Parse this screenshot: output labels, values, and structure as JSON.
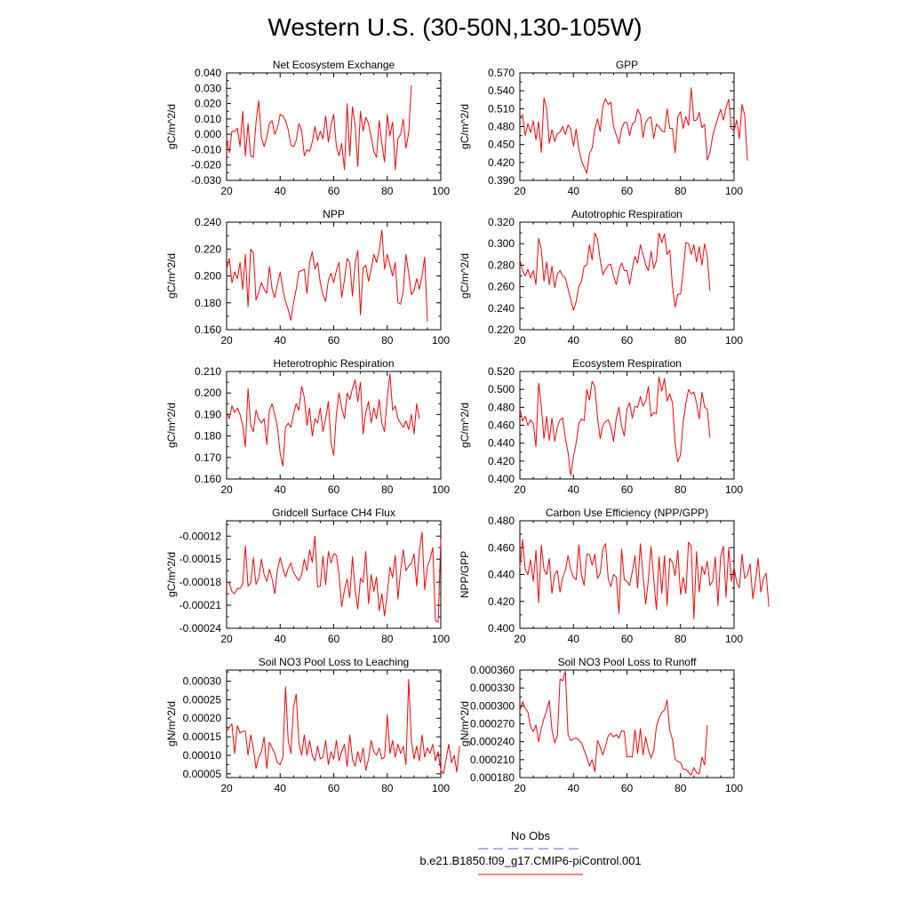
{
  "figure": {
    "title": "Western U.S. (30-50N,130-105W)",
    "legend": {
      "items": [
        {
          "label": "No Obs",
          "color": "#5555ff",
          "dashed": true
        },
        {
          "label": "b.e21.B1850.f09_g17.CMIP6-piControl.001",
          "color": "#ff0000",
          "dashed": false
        }
      ]
    }
  },
  "chart_data": [
    {
      "type": "line",
      "title": "Net Ecosystem Exchange",
      "ylabel": "gC/m^2/d",
      "xlim": [
        20,
        100
      ],
      "ylim": [
        -0.03,
        0.04
      ],
      "xticks": [
        "20",
        "40",
        "60",
        "80",
        "100"
      ],
      "yticks": [
        "-0.030",
        "-0.020",
        "-0.010",
        "0.000",
        "0.010",
        "0.020",
        "0.030",
        "0.040"
      ],
      "color": "#ff0000",
      "x0": 20,
      "values": [
        -0.003,
        -0.012,
        0.002,
        0.002,
        0.004,
        -0.008,
        0.015,
        -0.014,
        0.007,
        -0.014,
        -0.015,
        0.008,
        0.022,
        -0.002,
        -0.008,
        -0.002,
        0.007,
        0.009,
        0.0,
        0.004,
        0.013,
        0.012,
        0.009,
        0.003,
        -0.007,
        -0.008,
        -0.004,
        0.007,
        0.003,
        -0.014,
        -0.01,
        -0.011,
        -0.005,
        0.005,
        -0.004,
        0.002,
        -0.003,
        0.012,
        -0.005,
        0.006,
        0.013,
        -0.008,
        -0.014,
        -0.006,
        -0.023,
        0.02,
        -0.014,
        0.018,
        0.006,
        -0.021,
        0.015,
        0.002,
        0.011,
        0.007,
        -0.002,
        -0.011,
        -0.015,
        0.009,
        -0.006,
        -0.018,
        0.013,
        -0.001,
        0.008,
        -0.023,
        -0.003,
        0.0,
        0.01,
        -0.009,
        0.001,
        0.032
      ]
    },
    {
      "type": "line",
      "title": "GPP",
      "ylabel": "gC/m^2/d",
      "xlim": [
        20,
        100
      ],
      "ylim": [
        0.39,
        0.57
      ],
      "xticks": [
        "20",
        "40",
        "60",
        "80",
        "100"
      ],
      "yticks": [
        "0.390",
        "0.420",
        "0.450",
        "0.480",
        "0.510",
        "0.540",
        "0.570"
      ],
      "color": "#ff0000",
      "x0": 20,
      "values": [
        0.495,
        0.5,
        0.465,
        0.485,
        0.47,
        0.49,
        0.458,
        0.488,
        0.437,
        0.528,
        0.511,
        0.452,
        0.475,
        0.455,
        0.468,
        0.471,
        0.48,
        0.467,
        0.483,
        0.476,
        0.447,
        0.476,
        0.443,
        0.423,
        0.412,
        0.402,
        0.435,
        0.444,
        0.476,
        0.493,
        0.472,
        0.514,
        0.527,
        0.517,
        0.521,
        0.48,
        0.466,
        0.451,
        0.477,
        0.487,
        0.487,
        0.465,
        0.484,
        0.488,
        0.509,
        0.5,
        0.462,
        0.487,
        0.494,
        0.496,
        0.46,
        0.484,
        0.48,
        0.473,
        0.471,
        0.51,
        0.477,
        0.477,
        0.436,
        0.496,
        0.505,
        0.477,
        0.497,
        0.482,
        0.545,
        0.49,
        0.491,
        0.504,
        0.478,
        0.484,
        0.424,
        0.436,
        0.465,
        0.48,
        0.495,
        0.509,
        0.491,
        0.512,
        0.526,
        0.477,
        0.473,
        0.491,
        0.46,
        0.517,
        0.499,
        0.423
      ]
    },
    {
      "type": "line",
      "title": "NPP",
      "ylabel": "gC/m^2/d",
      "xlim": [
        20,
        100
      ],
      "ylim": [
        0.16,
        0.24
      ],
      "xticks": [
        "20",
        "40",
        "60",
        "80",
        "100"
      ],
      "yticks": [
        "0.160",
        "0.180",
        "0.200",
        "0.220",
        "0.240"
      ],
      "color": "#ff0000",
      "x0": 20,
      "values": [
        0.205,
        0.213,
        0.195,
        0.203,
        0.198,
        0.21,
        0.19,
        0.216,
        0.177,
        0.22,
        0.217,
        0.182,
        0.188,
        0.195,
        0.19,
        0.187,
        0.207,
        0.19,
        0.184,
        0.194,
        0.203,
        0.19,
        0.181,
        0.175,
        0.167,
        0.18,
        0.19,
        0.203,
        0.204,
        0.205,
        0.187,
        0.21,
        0.218,
        0.205,
        0.21,
        0.195,
        0.186,
        0.181,
        0.197,
        0.202,
        0.195,
        0.204,
        0.21,
        0.184,
        0.197,
        0.213,
        0.21,
        0.185,
        0.209,
        0.219,
        0.171,
        0.206,
        0.208,
        0.196,
        0.205,
        0.216,
        0.21,
        0.219,
        0.234,
        0.205,
        0.216,
        0.208,
        0.2,
        0.21,
        0.18,
        0.179,
        0.189,
        0.216,
        0.202,
        0.186,
        0.189,
        0.198,
        0.19,
        0.2,
        0.214,
        0.166
      ]
    },
    {
      "type": "line",
      "title": "Autotrophic Respiration",
      "ylabel": "gC/m^2/d",
      "xlim": [
        20,
        100
      ],
      "ylim": [
        0.22,
        0.32
      ],
      "xticks": [
        "20",
        "40",
        "60",
        "80",
        "100"
      ],
      "yticks": [
        "0.220",
        "0.240",
        "0.260",
        "0.280",
        "0.300",
        "0.320"
      ],
      "color": "#ff0000",
      "x0": 20,
      "values": [
        0.285,
        0.275,
        0.27,
        0.276,
        0.268,
        0.275,
        0.262,
        0.305,
        0.295,
        0.265,
        0.283,
        0.262,
        0.279,
        0.259,
        0.272,
        0.275,
        0.27,
        0.268,
        0.258,
        0.248,
        0.238,
        0.246,
        0.26,
        0.265,
        0.279,
        0.28,
        0.299,
        0.285,
        0.31,
        0.304,
        0.285,
        0.271,
        0.276,
        0.28,
        0.281,
        0.27,
        0.262,
        0.275,
        0.282,
        0.275,
        0.275,
        0.262,
        0.277,
        0.288,
        0.282,
        0.299,
        0.29,
        0.28,
        0.275,
        0.293,
        0.277,
        0.284,
        0.31,
        0.301,
        0.309,
        0.29,
        0.294,
        0.26,
        0.241,
        0.253,
        0.253,
        0.275,
        0.301,
        0.3,
        0.29,
        0.299,
        0.283,
        0.297,
        0.28,
        0.3,
        0.288,
        0.256
      ]
    },
    {
      "type": "line",
      "title": "Heterotrophic Respiration",
      "ylabel": "gC/m^2/d",
      "xlim": [
        20,
        100
      ],
      "ylim": [
        0.16,
        0.21
      ],
      "xticks": [
        "20",
        "40",
        "60",
        "80",
        "100"
      ],
      "yticks": [
        "0.160",
        "0.170",
        "0.180",
        "0.190",
        "0.200",
        "0.210"
      ],
      "color": "#ff0000",
      "x0": 20,
      "values": [
        0.191,
        0.188,
        0.194,
        0.191,
        0.193,
        0.19,
        0.185,
        0.175,
        0.202,
        0.185,
        0.182,
        0.192,
        0.188,
        0.186,
        0.188,
        0.176,
        0.192,
        0.195,
        0.19,
        0.184,
        0.172,
        0.166,
        0.184,
        0.186,
        0.184,
        0.19,
        0.195,
        0.192,
        0.203,
        0.198,
        0.185,
        0.193,
        0.18,
        0.188,
        0.186,
        0.193,
        0.182,
        0.188,
        0.196,
        0.177,
        0.171,
        0.19,
        0.2,
        0.193,
        0.188,
        0.2,
        0.197,
        0.202,
        0.206,
        0.196,
        0.205,
        0.181,
        0.191,
        0.196,
        0.186,
        0.193,
        0.188,
        0.197,
        0.186,
        0.182,
        0.198,
        0.209,
        0.192,
        0.194,
        0.188,
        0.186,
        0.184,
        0.187,
        0.183,
        0.19,
        0.181,
        0.195,
        0.188
      ]
    },
    {
      "type": "line",
      "title": "Ecosystem Respiration",
      "ylabel": "gC/m^2/d",
      "xlim": [
        20,
        100
      ],
      "ylim": [
        0.4,
        0.52
      ],
      "xticks": [
        "20",
        "40",
        "60",
        "80",
        "100"
      ],
      "yticks": [
        "0.400",
        "0.420",
        "0.440",
        "0.460",
        "0.480",
        "0.500",
        "0.520"
      ],
      "color": "#ff0000",
      "x0": 20,
      "values": [
        0.478,
        0.465,
        0.47,
        0.46,
        0.466,
        0.462,
        0.436,
        0.507,
        0.481,
        0.445,
        0.47,
        0.443,
        0.468,
        0.442,
        0.458,
        0.466,
        0.468,
        0.445,
        0.43,
        0.404,
        0.425,
        0.44,
        0.462,
        0.467,
        0.465,
        0.5,
        0.488,
        0.509,
        0.503,
        0.468,
        0.445,
        0.46,
        0.464,
        0.466,
        0.458,
        0.442,
        0.468,
        0.48,
        0.459,
        0.448,
        0.478,
        0.485,
        0.468,
        0.481,
        0.48,
        0.492,
        0.481,
        0.487,
        0.503,
        0.47,
        0.474,
        0.473,
        0.514,
        0.498,
        0.512,
        0.487,
        0.495,
        0.485,
        0.44,
        0.419,
        0.427,
        0.464,
        0.484,
        0.5,
        0.495,
        0.497,
        0.485,
        0.467,
        0.497,
        0.48,
        0.478,
        0.446
      ]
    },
    {
      "type": "line",
      "title": "Gridcell Surface CH4 Flux",
      "ylabel": "gC/m^2/d",
      "xlim": [
        20,
        100
      ],
      "ylim": [
        -0.00024,
        -0.0001
      ],
      "xticks": [
        "20",
        "40",
        "60",
        "80",
        "100"
      ],
      "yticks": [
        "-0.00024",
        "-0.00021",
        "-0.00018",
        "-0.00015",
        "-0.00012"
      ],
      "color": "#ff0000",
      "x0": 20,
      "values": [
        -0.00018,
        -0.000181,
        -0.000192,
        -0.000195,
        -0.000188,
        -0.000188,
        -0.000183,
        -0.000133,
        -0.000185,
        -0.000181,
        -0.000148,
        -0.000183,
        -0.000175,
        -0.00015,
        -0.00017,
        -0.000179,
        -0.000163,
        -0.000176,
        -0.000195,
        -0.000164,
        -0.000148,
        -0.000162,
        -0.000173,
        -0.000162,
        -0.000155,
        -0.000167,
        -0.000173,
        -0.000178,
        -0.00017,
        -0.00015,
        -0.000165,
        -0.000138,
        -0.000154,
        -0.00012,
        -0.000186,
        -0.000185,
        -0.000146,
        -0.000183,
        -0.00014,
        -0.000155,
        -0.000143,
        -0.000145,
        -0.00017,
        -0.000212,
        -0.00019,
        -0.000176,
        -0.0002,
        -0.000147,
        -0.00019,
        -0.000215,
        -0.000175,
        -0.00018,
        -0.00014,
        -0.000208,
        -0.00017,
        -0.000192,
        -0.000173,
        -0.000217,
        -0.000195,
        -0.000224,
        -0.000195,
        -0.00016,
        -0.000174,
        -0.000145,
        -0.000202,
        -0.000165,
        -0.000138,
        -0.000165,
        -0.000159,
        -0.000155,
        -0.000143,
        -0.000185,
        -0.00014,
        -0.000115,
        -0.00019,
        -0.00016,
        -0.00015,
        -0.000135,
        -0.00023,
        -0.000232,
        -0.000125
      ]
    },
    {
      "type": "line",
      "title": "Carbon Use Efficiency (NPP/GPP)",
      "ylabel": "NPP/GPP",
      "xlim": [
        20,
        100
      ],
      "ylim": [
        0.4,
        0.48
      ],
      "xticks": [
        "20",
        "40",
        "60",
        "80",
        "100"
      ],
      "yticks": [
        "0.400",
        "0.420",
        "0.440",
        "0.460",
        "0.480"
      ],
      "color": "#ff0000",
      "x0": 20,
      "values": [
        0.445,
        0.466,
        0.444,
        0.44,
        0.451,
        0.435,
        0.458,
        0.419,
        0.462,
        0.444,
        0.44,
        0.452,
        0.426,
        0.44,
        0.443,
        0.427,
        0.438,
        0.443,
        0.454,
        0.444,
        0.438,
        0.436,
        0.462,
        0.44,
        0.432,
        0.455,
        0.455,
        0.447,
        0.455,
        0.437,
        0.441,
        0.459,
        0.463,
        0.437,
        0.431,
        0.44,
        0.438,
        0.411,
        0.459,
        0.436,
        0.435,
        0.432,
        0.442,
        0.454,
        0.43,
        0.463,
        0.439,
        0.418,
        0.436,
        0.461,
        0.437,
        0.414,
        0.453,
        0.426,
        0.454,
        0.417,
        0.452,
        0.449,
        0.439,
        0.458,
        0.425,
        0.438,
        0.426,
        0.464,
        0.461,
        0.407,
        0.457,
        0.427,
        0.446,
        0.44,
        0.45,
        0.432,
        0.435,
        0.453,
        0.417,
        0.453,
        0.461,
        0.423,
        0.46,
        0.435,
        0.445,
        0.434,
        0.43,
        0.455,
        0.437,
        0.44,
        0.448,
        0.422,
        0.435,
        0.452,
        0.427,
        0.437,
        0.441,
        0.416
      ]
    },
    {
      "type": "line",
      "title": "Soil NO3 Pool Loss to Leaching",
      "ylabel": "gN/m^2/d",
      "xlim": [
        20,
        100
      ],
      "ylim": [
        4e-05,
        0.00033
      ],
      "xticks": [
        "20",
        "40",
        "60",
        "80",
        "100"
      ],
      "yticks": [
        "0.00005",
        "0.00010",
        "0.00015",
        "0.00020",
        "0.00025",
        "0.00030"
      ],
      "color": "#ff0000",
      "x0": 20,
      "values": [
        0.000165,
        0.000175,
        0.000185,
        0.000105,
        0.00018,
        0.00016,
        0.000165,
        0.000165,
        0.0001,
        0.000155,
        0.00012,
        6.5e-05,
        9.5e-05,
        0.00011,
        0.00015,
        6.5e-05,
        0.000135,
        0.00012,
        0.000105,
        8e-05,
        7.5e-05,
        9.5e-05,
        0.000285,
        0.00014,
        0.000105,
        0.00023,
        0.000265,
        0.000135,
        0.0001,
        0.000155,
        0.0001,
        0.00014,
        0.0001,
        8.5e-05,
        0.000125,
        9e-05,
        9.5e-05,
        0.00014,
        7.5e-05,
        0.00011,
        9e-05,
        0.00014,
        8.5e-05,
        0.00011,
        0.00013,
        7e-05,
        0.000155,
        9e-05,
        7e-05,
        0.00011,
        8e-05,
        0.00012,
        6e-05,
        9e-05,
        0.00014,
        0.00011,
        0.0001,
        0.00012,
        9e-05,
        9.5e-05,
        0.00021,
        0.000105,
        0.00014,
        9.5e-05,
        0.00013,
        0.000105,
        0.000125,
        7.5e-05,
        0.000305,
        0.00014,
        9e-05,
        0.000125,
        8.5e-05,
        0.000155,
        9.5e-05,
        0.00012,
        0.000105,
        0.00013,
        8.5e-05,
        0.00011,
        6e-05,
        5e-05,
        9e-05,
        0.00013,
        8e-05,
        0.0001,
        5.5e-05,
        0.000125
      ]
    },
    {
      "type": "line",
      "title": "Soil NO3 Pool Loss to Runoff",
      "ylabel": "gN/m^2/d",
      "xlim": [
        20,
        100
      ],
      "ylim": [
        0.00018,
        0.00036
      ],
      "xticks": [
        "20",
        "40",
        "60",
        "80",
        "100"
      ],
      "yticks": [
        "0.000180",
        "0.000210",
        "0.000240",
        "0.000270",
        "0.000300",
        "0.000330",
        "0.000360"
      ],
      "color": "#ff0000",
      "x0": 20,
      "values": [
        0.000292,
        0.000307,
        0.000296,
        0.00029,
        0.000265,
        0.000257,
        0.000268,
        0.00024,
        0.000262,
        0.000279,
        0.000292,
        0.000309,
        0.00026,
        0.000238,
        0.00025,
        0.000345,
        0.000342,
        0.000358,
        0.000252,
        0.000242,
        0.000245,
        0.000246,
        0.000243,
        0.000238,
        0.000226,
        0.000214,
        0.000199,
        0.00021,
        0.00019,
        0.000242,
        0.000231,
        0.000218,
        0.000233,
        0.00025,
        0.000254,
        0.000248,
        0.000252,
        0.000246,
        0.000259,
        0.000257,
        0.000214,
        0.000216,
        0.000214,
        0.00026,
        0.00022,
        0.000262,
        0.000218,
        0.000248,
        0.000226,
        0.000213,
        0.000225,
        0.000265,
        0.00028,
        0.000289,
        0.000293,
        0.00031,
        0.000258,
        0.000244,
        0.000211,
        0.000207,
        0.000205,
        0.000194,
        0.000194,
        0.000189,
        0.000184,
        0.000197,
        0.000188,
        0.000186,
        0.000214,
        0.000201,
        0.000268
      ]
    }
  ]
}
